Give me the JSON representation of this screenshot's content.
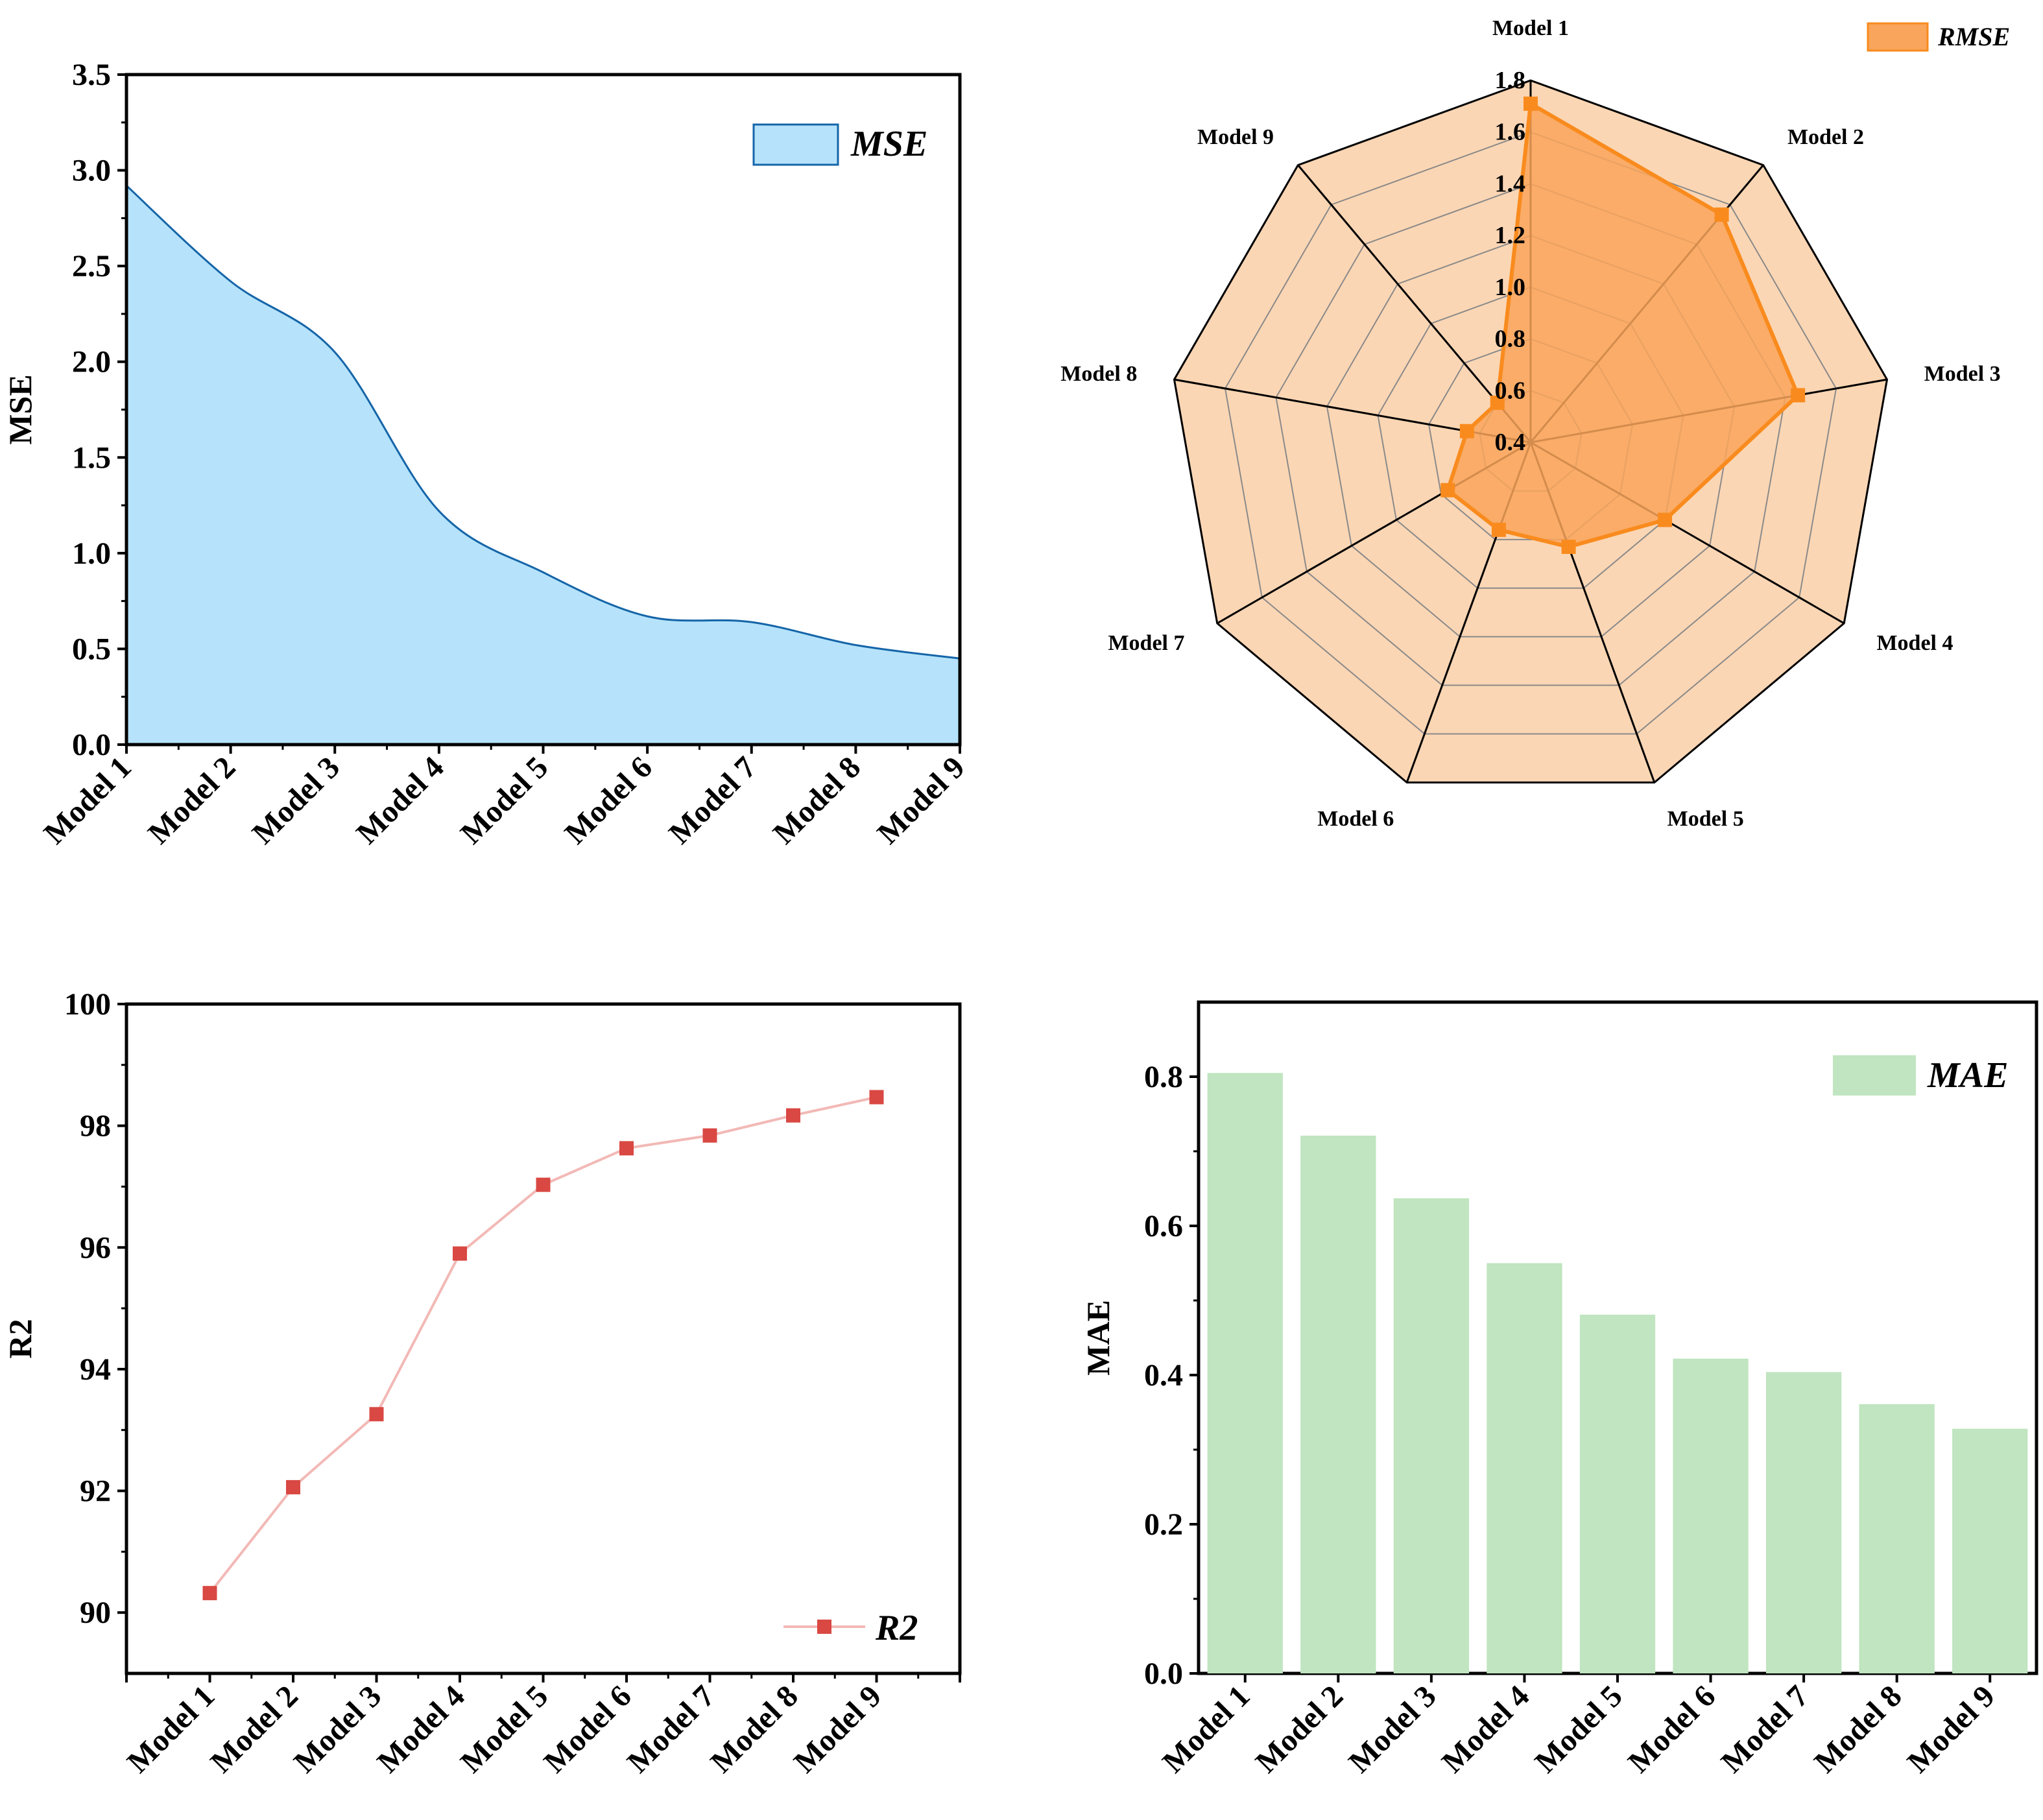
{
  "chart_data": [
    {
      "id": "mse",
      "type": "area",
      "categories": [
        "Model 1",
        "Model 2",
        "Model 3",
        "Model 4",
        "Model 5",
        "Model 6",
        "Model 7",
        "Model 8",
        "Model 9"
      ],
      "values": [
        2.92,
        2.42,
        2.05,
        1.22,
        0.9,
        0.67,
        0.64,
        0.52,
        0.45
      ],
      "ylabel": "MSE",
      "ylim": [
        0,
        3.5
      ],
      "yticks": [
        "0.0",
        "0.5",
        "1.0",
        "1.5",
        "2.0",
        "2.5",
        "3.0",
        "3.5"
      ],
      "legend": "MSE",
      "fill": "#b6e3fb",
      "stroke": "#1565a8"
    },
    {
      "id": "rmse",
      "type": "radar",
      "categories": [
        "Model 1",
        "Model 2",
        "Model 3",
        "Model 4",
        "Model 5",
        "Model 6",
        "Model 7",
        "Model 8",
        "Model 9"
      ],
      "values": [
        1.71,
        1.55,
        1.45,
        1.0,
        0.83,
        0.76,
        0.77,
        0.65,
        0.6
      ],
      "rlim": [
        0.4,
        1.8
      ],
      "rticks": [
        "0.4",
        "0.6",
        "0.8",
        "1.0",
        "1.2",
        "1.4",
        "1.6",
        "1.8"
      ],
      "legend": "RMSE",
      "fill": "#f9a55b",
      "stroke": "#f98b1e",
      "background": "#fbd6b4"
    },
    {
      "id": "r2",
      "type": "line",
      "categories": [
        "Model 1",
        "Model 2",
        "Model 3",
        "Model 4",
        "Model 5",
        "Model 6",
        "Model 7",
        "Model 8",
        "Model 9"
      ],
      "values": [
        90.32,
        92.06,
        93.26,
        95.9,
        97.03,
        97.63,
        97.84,
        98.17,
        98.47
      ],
      "ylabel": "R2",
      "ylim": [
        89,
        100
      ],
      "yticks": [
        "90",
        "92",
        "94",
        "96",
        "98",
        "100"
      ],
      "legend": "R2",
      "line": "#f2b9b6",
      "marker": "#d94843"
    },
    {
      "id": "mae",
      "type": "bar",
      "categories": [
        "Model 1",
        "Model 2",
        "Model 3",
        "Model 4",
        "Model 5",
        "Model 6",
        "Model 7",
        "Model 8",
        "Model 9"
      ],
      "values": [
        0.805,
        0.721,
        0.637,
        0.55,
        0.481,
        0.422,
        0.404,
        0.361,
        0.328
      ],
      "ylabel": "MAE",
      "ylim": [
        0,
        0.9
      ],
      "yticks": [
        "0.0",
        "0.2",
        "0.4",
        "0.6",
        "0.8"
      ],
      "legend": "MAE",
      "fill": "#c0e5c0"
    }
  ]
}
